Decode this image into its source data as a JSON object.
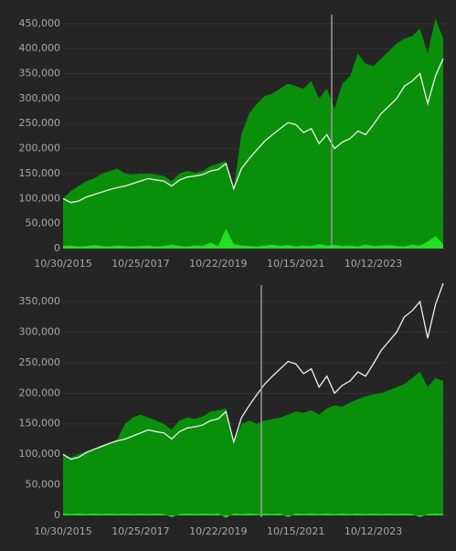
{
  "chart_data": [
    {
      "type": "area",
      "categories": [
        "10/30/2015",
        null,
        null,
        null,
        null,
        null,
        null,
        null,
        null,
        null,
        "10/25/2017",
        null,
        null,
        null,
        null,
        null,
        null,
        null,
        null,
        null,
        "10/22/2019",
        null,
        null,
        null,
        null,
        null,
        null,
        null,
        null,
        null,
        "10/15/2021",
        null,
        null,
        null,
        null,
        null,
        null,
        null,
        null,
        null,
        "10/12/2023",
        null,
        null,
        null,
        null,
        null,
        null,
        null,
        null,
        null
      ],
      "series": [
        {
          "type": "area",
          "color": "#0a8f0a",
          "values": [
            100000,
            115000,
            125000,
            135000,
            140000,
            150000,
            155000,
            160000,
            150000,
            148000,
            150000,
            150000,
            148000,
            145000,
            135000,
            150000,
            155000,
            152000,
            155000,
            165000,
            170000,
            175000,
            120000,
            230000,
            270000,
            290000,
            305000,
            310000,
            320000,
            330000,
            325000,
            320000,
            335000,
            300000,
            320000,
            280000,
            330000,
            345000,
            390000,
            370000,
            365000,
            380000,
            395000,
            410000,
            420000,
            425000,
            440000,
            390000,
            460000,
            420000
          ]
        },
        {
          "type": "line",
          "color": "#f0f0f0",
          "values": [
            100000,
            92000,
            95000,
            103000,
            108000,
            113000,
            118000,
            122000,
            125000,
            130000,
            135000,
            140000,
            137000,
            135000,
            125000,
            137000,
            143000,
            145000,
            148000,
            155000,
            158000,
            170000,
            120000,
            160000,
            180000,
            198000,
            215000,
            228000,
            240000,
            252000,
            248000,
            232000,
            240000,
            210000,
            228000,
            200000,
            213000,
            220000,
            235000,
            228000,
            248000,
            270000,
            285000,
            300000,
            325000,
            335000,
            350000,
            290000,
            345000,
            380000
          ]
        },
        {
          "type": "area",
          "color": "#22e022",
          "values": [
            5000,
            6000,
            4000,
            5000,
            7000,
            5000,
            4000,
            6000,
            5000,
            4000,
            5000,
            6000,
            4000,
            5000,
            8000,
            5000,
            4000,
            6000,
            5000,
            12000,
            5000,
            40000,
            9000,
            6000,
            5000,
            4000,
            6000,
            8000,
            5000,
            7000,
            4000,
            6000,
            5000,
            9000,
            6000,
            7000,
            5000,
            6000,
            4000,
            8000,
            5000,
            6000,
            7000,
            5000,
            4000,
            8000,
            6000,
            14000,
            25000,
            9000
          ]
        }
      ],
      "ylim": [
        0,
        468000
      ],
      "yticks": [
        0,
        {
          "value": 50000,
          "label": "50,000"
        },
        {
          "value": 100000,
          "label": "100,000"
        },
        {
          "value": 150000,
          "label": "150,000"
        },
        {
          "value": 200000,
          "label": "200,000"
        },
        {
          "value": 250000,
          "label": "250,000"
        },
        {
          "value": 300000,
          "label": "300,000"
        },
        {
          "value": 350000,
          "label": "350,000"
        },
        {
          "value": 400000,
          "label": "400,000"
        },
        {
          "value": 450000,
          "label": "450,000"
        }
      ],
      "grid": true
    },
    {
      "type": "area",
      "categories": [
        "10/30/2015",
        null,
        null,
        null,
        null,
        null,
        null,
        null,
        null,
        null,
        "10/25/2017",
        null,
        null,
        null,
        null,
        null,
        null,
        null,
        null,
        null,
        "10/22/2019",
        null,
        null,
        null,
        null,
        null,
        null,
        null,
        null,
        null,
        "10/15/2021",
        null,
        null,
        null,
        null,
        null,
        null,
        null,
        null,
        null,
        "10/12/2023",
        null,
        null,
        null,
        null,
        null,
        null,
        null,
        null,
        null
      ],
      "series": [
        {
          "type": "area",
          "color": "#0a8f0a",
          "values": [
            100000,
            95000,
            100000,
            105000,
            110000,
            115000,
            118000,
            125000,
            150000,
            160000,
            165000,
            160000,
            155000,
            150000,
            140000,
            155000,
            160000,
            158000,
            162000,
            170000,
            172000,
            175000,
            120000,
            150000,
            155000,
            150000,
            155000,
            158000,
            160000,
            165000,
            170000,
            168000,
            172000,
            165000,
            175000,
            180000,
            178000,
            185000,
            190000,
            195000,
            198000,
            200000,
            205000,
            210000,
            215000,
            225000,
            235000,
            210000,
            225000,
            220000
          ]
        },
        {
          "type": "line",
          "color": "#f0f0f0",
          "values": [
            100000,
            92000,
            95000,
            103000,
            108000,
            113000,
            118000,
            122000,
            125000,
            130000,
            135000,
            140000,
            137000,
            135000,
            125000,
            137000,
            143000,
            145000,
            148000,
            155000,
            158000,
            170000,
            120000,
            160000,
            180000,
            198000,
            215000,
            228000,
            240000,
            252000,
            248000,
            232000,
            240000,
            210000,
            228000,
            200000,
            213000,
            220000,
            235000,
            228000,
            248000,
            270000,
            285000,
            300000,
            325000,
            335000,
            350000,
            290000,
            345000,
            380000
          ]
        },
        {
          "type": "area",
          "color": "#22e022",
          "values": [
            3000,
            2000,
            3000,
            2000,
            3000,
            2000,
            3000,
            2000,
            3000,
            2000,
            3000,
            2000,
            3000,
            2000,
            -3000,
            2000,
            3000,
            2000,
            3000,
            2000,
            3000,
            -4000,
            3000,
            2000,
            3000,
            2000,
            3000,
            2000,
            3000,
            -3000,
            3000,
            2000,
            3000,
            2000,
            3000,
            2000,
            3000,
            2000,
            3000,
            2000,
            3000,
            2000,
            3000,
            2000,
            3000,
            2000,
            -3000,
            2000,
            3000,
            2000
          ]
        }
      ],
      "ylim": [
        0,
        377000
      ],
      "yticks": [
        0,
        {
          "value": 50000,
          "label": "50,000"
        },
        {
          "value": 100000,
          "label": "100,000"
        },
        {
          "value": 150000,
          "label": "150,000"
        },
        {
          "value": 200000,
          "label": "200,000"
        },
        {
          "value": 250000,
          "label": "250,000"
        },
        {
          "value": 300000,
          "label": "300,000"
        },
        {
          "value": 350000,
          "label": "350,000"
        }
      ],
      "grid": true
    }
  ]
}
